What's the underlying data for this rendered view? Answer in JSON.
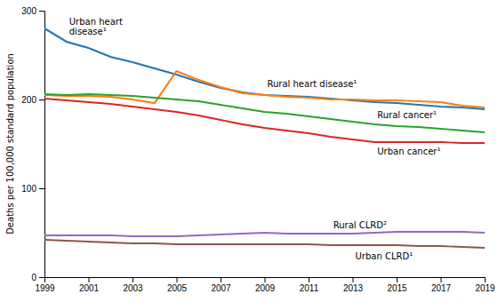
{
  "chart_data": {
    "type": "line",
    "ylabel": "Deaths per 100,000 standard population",
    "x": [
      1999,
      2000,
      2001,
      2002,
      2003,
      2004,
      2005,
      2006,
      2007,
      2008,
      2009,
      2010,
      2011,
      2012,
      2013,
      2014,
      2015,
      2016,
      2017,
      2018,
      2019
    ],
    "xlim": [
      1999,
      2019
    ],
    "xticks": [
      1999,
      2001,
      2003,
      2005,
      2007,
      2009,
      2011,
      2013,
      2015,
      2017,
      2019
    ],
    "ylim": [
      0,
      300
    ],
    "yticks": [
      0,
      100,
      200,
      300
    ],
    "grid": false,
    "series": [
      {
        "name": "Urban heart\ndisease¹",
        "values": [
          280,
          265,
          258,
          248,
          242,
          235,
          228,
          220,
          213,
          208,
          205,
          204,
          203,
          201,
          199,
          197,
          196,
          194,
          192,
          191,
          189
        ]
      },
      {
        "name": "Rural heart disease¹",
        "values": [
          205,
          204,
          204,
          203,
          200,
          196,
          232,
          222,
          214,
          207,
          205,
          203,
          202,
          200,
          200,
          199,
          199,
          198,
          197,
          193,
          191
        ]
      },
      {
        "name": "Rural cancer¹",
        "values": [
          206,
          205,
          206,
          205,
          204,
          202,
          200,
          198,
          194,
          190,
          186,
          184,
          181,
          178,
          175,
          172,
          170,
          169,
          167,
          165,
          163
        ]
      },
      {
        "name": "Urban cancer¹",
        "values": [
          201,
          199,
          197,
          195,
          192,
          189,
          186,
          182,
          177,
          172,
          168,
          165,
          162,
          158,
          155,
          152,
          152,
          152,
          152,
          151,
          151
        ]
      },
      {
        "name": "Rural CLRD²",
        "values": [
          47,
          47,
          47,
          47,
          46,
          46,
          46,
          47,
          48,
          49,
          50,
          49,
          49,
          49,
          49,
          50,
          51,
          51,
          51,
          51,
          50
        ]
      },
      {
        "name": "Urban CLRD¹",
        "values": [
          42,
          41,
          40,
          39,
          38,
          38,
          37,
          37,
          37,
          37,
          37,
          37,
          37,
          36,
          36,
          36,
          36,
          35,
          35,
          34,
          33
        ]
      }
    ]
  }
}
